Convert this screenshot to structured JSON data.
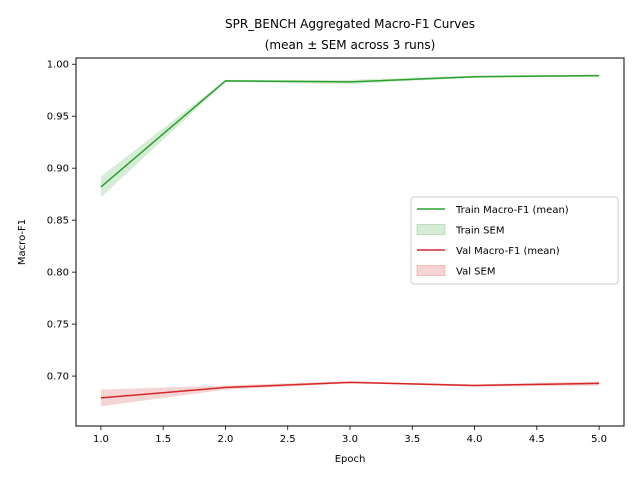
{
  "chart_data": {
    "type": "line",
    "title": "SPR_BENCH Aggregated Macro-F1 Curves",
    "subtitle": "(mean ± SEM across 3 runs)",
    "xlabel": "Epoch",
    "ylabel": "Macro-F1",
    "xlim": [
      0.8,
      5.2
    ],
    "ylim": [
      0.652,
      1.006
    ],
    "xticks": [
      1.0,
      1.5,
      2.0,
      2.5,
      3.0,
      3.5,
      4.0,
      4.5,
      5.0
    ],
    "xtick_labels": [
      "1.0",
      "1.5",
      "2.0",
      "2.5",
      "3.0",
      "3.5",
      "4.0",
      "4.5",
      "5.0"
    ],
    "yticks": [
      0.7,
      0.75,
      0.8,
      0.85,
      0.9,
      0.95,
      1.0
    ],
    "ytick_labels": [
      "0.70",
      "0.75",
      "0.80",
      "0.85",
      "0.90",
      "0.95",
      "1.00"
    ],
    "grid": false,
    "legend_position": "center-right",
    "x": [
      1,
      2,
      3,
      4,
      5
    ],
    "series": [
      {
        "name": "Train Macro-F1 (mean)",
        "band_name": "Train SEM",
        "color": "#2ca02c",
        "values": [
          0.882,
          0.984,
          0.983,
          0.988,
          0.989
        ],
        "sem": [
          0.01,
          0.001,
          0.002,
          0.001,
          0.001
        ]
      },
      {
        "name": "Val Macro-F1 (mean)",
        "band_name": "Val SEM",
        "color": "#d62728",
        "values": [
          0.679,
          0.689,
          0.694,
          0.691,
          0.693
        ],
        "sem": [
          0.008,
          0.002,
          0.001,
          0.001,
          0.002
        ]
      }
    ]
  }
}
